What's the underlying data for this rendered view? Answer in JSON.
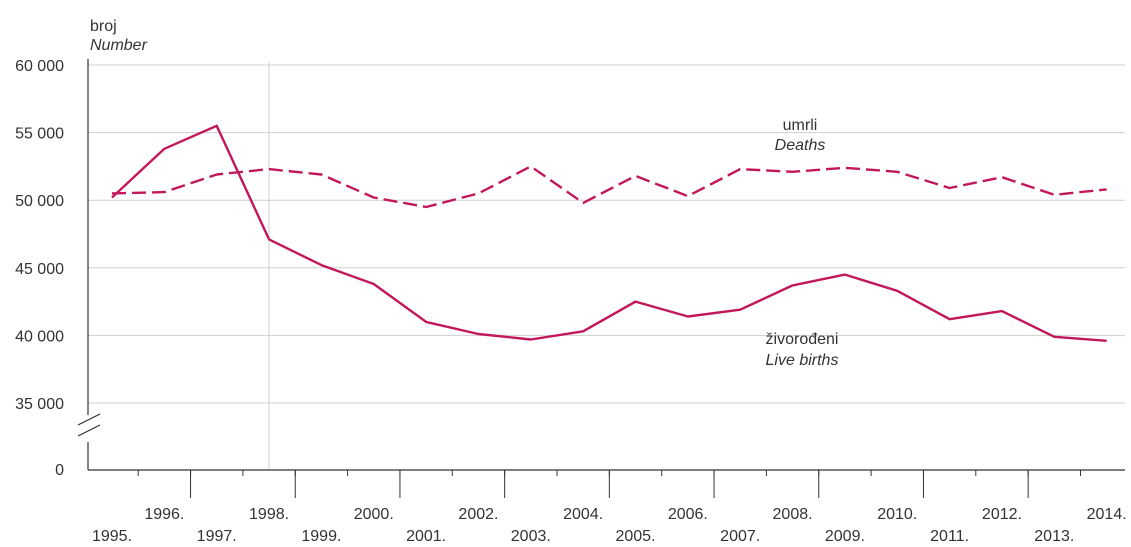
{
  "chart_data": {
    "type": "line",
    "ylabel": {
      "line1": "broj",
      "line2": "Number"
    },
    "y_ticks": [
      {
        "value": 60000,
        "label": "60 000"
      },
      {
        "value": 55000,
        "label": "55 000"
      },
      {
        "value": 50000,
        "label": "50 000"
      },
      {
        "value": 45000,
        "label": "45 000"
      },
      {
        "value": 40000,
        "label": "40 000"
      },
      {
        "value": 35000,
        "label": "35 000"
      },
      {
        "value": 0,
        "label": "0"
      }
    ],
    "axis_break": true,
    "ylim": [
      35000,
      60000
    ],
    "grid": true,
    "x": [
      "1995.",
      "1996.",
      "1997.",
      "1998.",
      "1999.",
      "2000.",
      "2001.",
      "2002.",
      "2003.",
      "2004.",
      "2005.",
      "2006.",
      "2007.",
      "2008.",
      "2009.",
      "2010.",
      "2011.",
      "2012.",
      "2013.",
      "2014."
    ],
    "series": [
      {
        "name": "umrli",
        "name_en": "Deaths",
        "style": "dashed",
        "color": "#c2185b",
        "values": [
          50500,
          50600,
          51900,
          52300,
          51900,
          50200,
          49500,
          50500,
          52500,
          49800,
          51800,
          50300,
          52300,
          52100,
          52400,
          52100,
          50900,
          51700,
          50400,
          50800
        ]
      },
      {
        "name": "živorođeni",
        "name_en": "Live births",
        "style": "solid",
        "color": "#c2185b",
        "values": [
          50200,
          53800,
          55500,
          47100,
          45200,
          43800,
          41000,
          40100,
          39700,
          40300,
          42500,
          41400,
          41900,
          43700,
          44500,
          43300,
          41200,
          41800,
          39900,
          39600
        ]
      }
    ],
    "colors": {
      "line": "#c2185b",
      "grid": "#cfcfcf",
      "axis": "#333333"
    }
  }
}
